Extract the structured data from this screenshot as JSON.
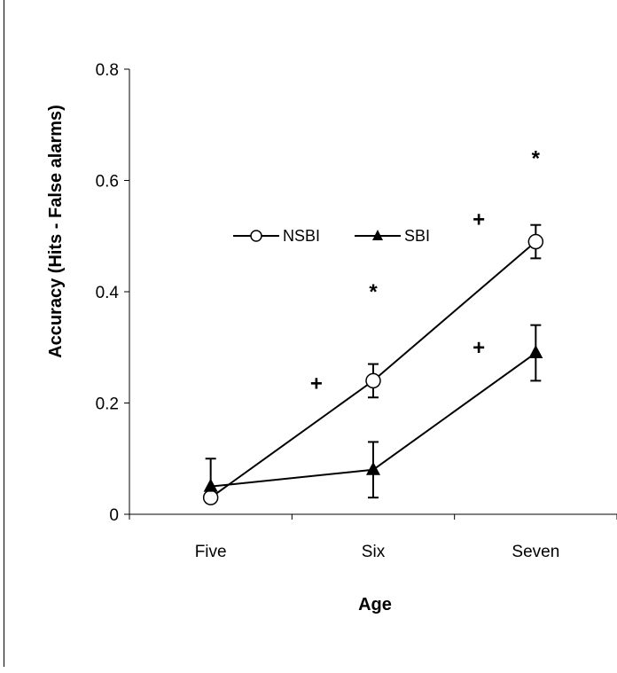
{
  "chart_data": {
    "type": "line",
    "title": "",
    "xlabel": "Age",
    "ylabel": "Accuracy (Hits - False alarms)",
    "categories": [
      "Five",
      "Six",
      "Seven"
    ],
    "ylim": [
      0,
      0.8
    ],
    "yticks": [
      0,
      0.2,
      0.4,
      0.6,
      0.8
    ],
    "ytick_labels": [
      "0",
      "0.2",
      "0.4",
      "0.6",
      "0.8"
    ],
    "grid": false,
    "legend_position": "upper-left",
    "series": [
      {
        "name": "NSBI",
        "marker": "open-circle",
        "values": [
          0.03,
          0.24,
          0.49
        ],
        "err_low": [
          0.0,
          0.03,
          0.03
        ],
        "err_high": [
          0.0,
          0.03,
          0.03
        ]
      },
      {
        "name": "SBI",
        "marker": "filled-triangle",
        "values": [
          0.05,
          0.08,
          0.29
        ],
        "err_low": [
          0.0,
          0.05,
          0.05
        ],
        "err_high": [
          0.05,
          0.05,
          0.05
        ]
      }
    ],
    "annotations": [
      {
        "text": "+",
        "x": 0.65,
        "y": 0.235
      },
      {
        "text": "*",
        "x": 1.0,
        "y": 0.4
      },
      {
        "text": "+",
        "x": 1.65,
        "y": 0.53
      },
      {
        "text": "+",
        "x": 1.65,
        "y": 0.3
      },
      {
        "text": "*",
        "x": 2.0,
        "y": 0.64
      }
    ]
  }
}
